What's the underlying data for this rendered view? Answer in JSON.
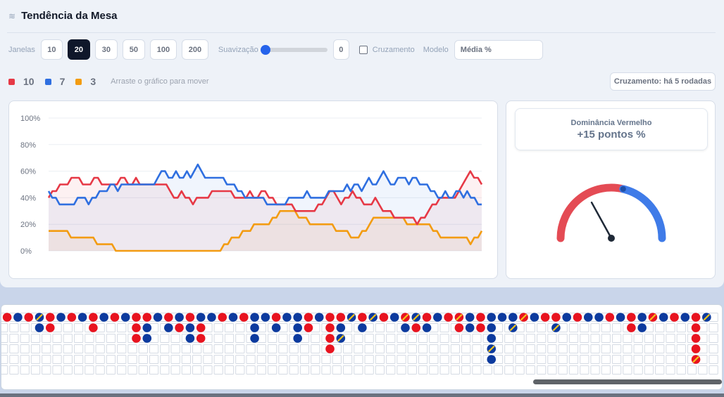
{
  "header": {
    "icon": "trend-icon",
    "icon_glyph": "≋",
    "title": "Tendência da Mesa"
  },
  "controls": {
    "windows_label": "Janelas",
    "windows": [
      "10",
      "20",
      "30",
      "50",
      "100",
      "200"
    ],
    "active_window": "20",
    "smoothing_label": "Suavização",
    "smoothing_value": "0",
    "smoothing_level": 0,
    "crossing_label": "Cruzamento",
    "crossing_checked": false,
    "model_label": "Modelo",
    "model_value": "Média %"
  },
  "legend": {
    "items": [
      {
        "color": "#e63946",
        "count": "10"
      },
      {
        "color": "#2f6fe0",
        "count": "7"
      },
      {
        "color": "#f39c12",
        "count": "3"
      }
    ],
    "hint": "Arraste o gráfico para mover"
  },
  "crossing_badge": "Cruzamento: há 5 rodadas",
  "chart_data": {
    "type": "line",
    "yticks": [
      "100%",
      "80%",
      "60%",
      "40%",
      "20%",
      "0%"
    ],
    "ylim": [
      0,
      100
    ],
    "grid": true,
    "series": [
      {
        "color": "#e63946",
        "values": [
          40,
          45,
          45,
          50,
          50,
          50,
          55,
          55,
          55,
          50,
          50,
          50,
          55,
          55,
          50,
          50,
          50,
          50,
          50,
          55,
          55,
          50,
          50,
          55,
          50,
          50,
          50,
          50,
          50,
          50,
          50,
          50,
          45,
          40,
          40,
          45,
          40,
          40,
          35,
          40,
          40,
          40,
          40,
          45,
          45,
          45,
          45,
          45,
          45,
          40,
          40,
          40,
          40,
          45,
          40,
          40,
          45,
          45,
          40,
          40,
          35,
          35,
          35,
          35,
          35,
          30,
          30,
          30,
          30,
          30,
          30,
          35,
          35,
          40,
          45,
          45,
          40,
          35,
          40,
          40,
          45,
          40,
          40,
          35,
          35,
          35,
          40,
          35,
          30,
          30,
          30,
          25,
          25,
          25,
          25,
          25,
          25,
          20,
          25,
          25,
          30,
          35,
          35,
          40,
          40,
          40,
          40,
          40,
          45,
          50,
          55,
          60,
          55,
          55,
          50
        ]
      },
      {
        "color": "#2f6fe0",
        "values": [
          45,
          40,
          40,
          35,
          35,
          35,
          35,
          35,
          40,
          40,
          40,
          35,
          40,
          40,
          45,
          45,
          45,
          50,
          50,
          45,
          50,
          50,
          50,
          50,
          50,
          50,
          50,
          50,
          50,
          50,
          55,
          60,
          60,
          55,
          55,
          60,
          55,
          55,
          60,
          55,
          60,
          65,
          60,
          55,
          55,
          55,
          55,
          55,
          55,
          50,
          50,
          50,
          45,
          45,
          40,
          40,
          40,
          40,
          40,
          40,
          35,
          35,
          35,
          35,
          35,
          35,
          40,
          40,
          40,
          40,
          40,
          45,
          40,
          40,
          40,
          40,
          40,
          45,
          45,
          45,
          45,
          45,
          50,
          45,
          50,
          50,
          45,
          50,
          55,
          50,
          50,
          55,
          60,
          55,
          50,
          50,
          55,
          55,
          55,
          50,
          55,
          55,
          50,
          50,
          50,
          45,
          45,
          40,
          40,
          45,
          40,
          40,
          45,
          45,
          40,
          45,
          40,
          40,
          35,
          35
        ]
      },
      {
        "color": "#f39c12",
        "values": [
          15,
          15,
          15,
          15,
          15,
          15,
          10,
          10,
          10,
          10,
          10,
          10,
          10,
          5,
          5,
          5,
          5,
          5,
          0,
          0,
          0,
          0,
          0,
          0,
          0,
          0,
          0,
          0,
          0,
          0,
          0,
          0,
          0,
          0,
          0,
          0,
          0,
          0,
          0,
          0,
          0,
          0,
          0,
          0,
          0,
          0,
          0,
          5,
          5,
          10,
          10,
          10,
          15,
          15,
          15,
          20,
          20,
          20,
          20,
          20,
          25,
          25,
          30,
          30,
          30,
          30,
          30,
          25,
          25,
          25,
          20,
          20,
          20,
          20,
          20,
          20,
          20,
          15,
          15,
          15,
          15,
          10,
          10,
          10,
          15,
          15,
          20,
          25,
          25,
          25,
          25,
          25,
          25,
          25,
          25,
          25,
          20,
          20,
          20,
          20,
          20,
          20,
          20,
          15,
          15,
          10,
          10,
          10,
          10,
          10,
          10,
          10,
          10,
          5,
          10,
          10,
          15
        ]
      }
    ]
  },
  "gauge": {
    "title": "Dominância Vermelho",
    "value_text": "+15 pontos %",
    "red_share": 0.575,
    "colors": {
      "red": "#e44b54",
      "blue": "#3f7be8"
    }
  },
  "roadmap": {
    "cols": 66,
    "rows": 6,
    "colors": {
      "red": "#e8131f",
      "blue": "#0c3a9e",
      "tie_stripe": "#f5c518",
      "grid": "#d4dae3"
    },
    "cells": [
      [
        0,
        0,
        "R"
      ],
      [
        1,
        0,
        "B"
      ],
      [
        2,
        0,
        "R"
      ],
      [
        3,
        0,
        "BT"
      ],
      [
        4,
        0,
        "R"
      ],
      [
        5,
        0,
        "B"
      ],
      [
        6,
        0,
        "R"
      ],
      [
        7,
        0,
        "B"
      ],
      [
        8,
        0,
        "R"
      ],
      [
        9,
        0,
        "B"
      ],
      [
        10,
        0,
        "R"
      ],
      [
        11,
        0,
        "B"
      ],
      [
        12,
        0,
        "R"
      ],
      [
        13,
        0,
        "R"
      ],
      [
        14,
        0,
        "B"
      ],
      [
        15,
        0,
        "R"
      ],
      [
        16,
        0,
        "B"
      ],
      [
        17,
        0,
        "R"
      ],
      [
        18,
        0,
        "B"
      ],
      [
        19,
        0,
        "B"
      ],
      [
        20,
        0,
        "R"
      ],
      [
        21,
        0,
        "B"
      ],
      [
        22,
        0,
        "R"
      ],
      [
        23,
        0,
        "B"
      ],
      [
        24,
        0,
        "B"
      ],
      [
        25,
        0,
        "R"
      ],
      [
        26,
        0,
        "B"
      ],
      [
        27,
        0,
        "B"
      ],
      [
        28,
        0,
        "R"
      ],
      [
        29,
        0,
        "B"
      ],
      [
        30,
        0,
        "R"
      ],
      [
        31,
        0,
        "R"
      ],
      [
        32,
        0,
        "BT"
      ],
      [
        33,
        0,
        "R"
      ],
      [
        34,
        0,
        "BT"
      ],
      [
        35,
        0,
        "R"
      ],
      [
        36,
        0,
        "B"
      ],
      [
        37,
        0,
        "RT"
      ],
      [
        38,
        0,
        "BT"
      ],
      [
        39,
        0,
        "R"
      ],
      [
        40,
        0,
        "B"
      ],
      [
        41,
        0,
        "R"
      ],
      [
        42,
        0,
        "RT"
      ],
      [
        43,
        0,
        "B"
      ],
      [
        44,
        0,
        "R"
      ],
      [
        45,
        0,
        "B"
      ],
      [
        46,
        0,
        "B"
      ],
      [
        47,
        0,
        "B"
      ],
      [
        48,
        0,
        "RT"
      ],
      [
        49,
        0,
        "B"
      ],
      [
        50,
        0,
        "R"
      ],
      [
        51,
        0,
        "R"
      ],
      [
        52,
        0,
        "B"
      ],
      [
        53,
        0,
        "R"
      ],
      [
        54,
        0,
        "B"
      ],
      [
        55,
        0,
        "B"
      ],
      [
        56,
        0,
        "R"
      ],
      [
        57,
        0,
        "B"
      ],
      [
        58,
        0,
        "R"
      ],
      [
        59,
        0,
        "B"
      ],
      [
        60,
        0,
        "RT"
      ],
      [
        61,
        0,
        "B"
      ],
      [
        62,
        0,
        "R"
      ],
      [
        63,
        0,
        "B"
      ],
      [
        64,
        0,
        "R"
      ],
      [
        65,
        0,
        "BT"
      ],
      [
        3,
        1,
        "B"
      ],
      [
        4,
        1,
        "R"
      ],
      [
        8,
        1,
        "R"
      ],
      [
        12,
        1,
        "R"
      ],
      [
        13,
        1,
        "B"
      ],
      [
        15,
        1,
        "B"
      ],
      [
        16,
        1,
        "R"
      ],
      [
        17,
        1,
        "B"
      ],
      [
        18,
        1,
        "R"
      ],
      [
        23,
        1,
        "B"
      ],
      [
        25,
        1,
        "B"
      ],
      [
        27,
        1,
        "B"
      ],
      [
        28,
        1,
        "R"
      ],
      [
        30,
        1,
        "R"
      ],
      [
        31,
        1,
        "B"
      ],
      [
        33,
        1,
        "B"
      ],
      [
        37,
        1,
        "B"
      ],
      [
        38,
        1,
        "R"
      ],
      [
        39,
        1,
        "B"
      ],
      [
        42,
        1,
        "R"
      ],
      [
        43,
        1,
        "B"
      ],
      [
        44,
        1,
        "R"
      ],
      [
        45,
        1,
        "B"
      ],
      [
        47,
        1,
        "BT"
      ],
      [
        51,
        1,
        "BT"
      ],
      [
        58,
        1,
        "R"
      ],
      [
        59,
        1,
        "B"
      ],
      [
        64,
        1,
        "R"
      ],
      [
        12,
        2,
        "R"
      ],
      [
        13,
        2,
        "B"
      ],
      [
        17,
        2,
        "B"
      ],
      [
        18,
        2,
        "R"
      ],
      [
        23,
        2,
        "B"
      ],
      [
        27,
        2,
        "B"
      ],
      [
        30,
        2,
        "R"
      ],
      [
        31,
        2,
        "BT"
      ],
      [
        45,
        2,
        "B"
      ],
      [
        64,
        2,
        "R"
      ],
      [
        30,
        3,
        "R"
      ],
      [
        45,
        3,
        "BT"
      ],
      [
        64,
        3,
        "R"
      ],
      [
        45,
        4,
        "B"
      ],
      [
        64,
        4,
        "RT"
      ]
    ]
  }
}
